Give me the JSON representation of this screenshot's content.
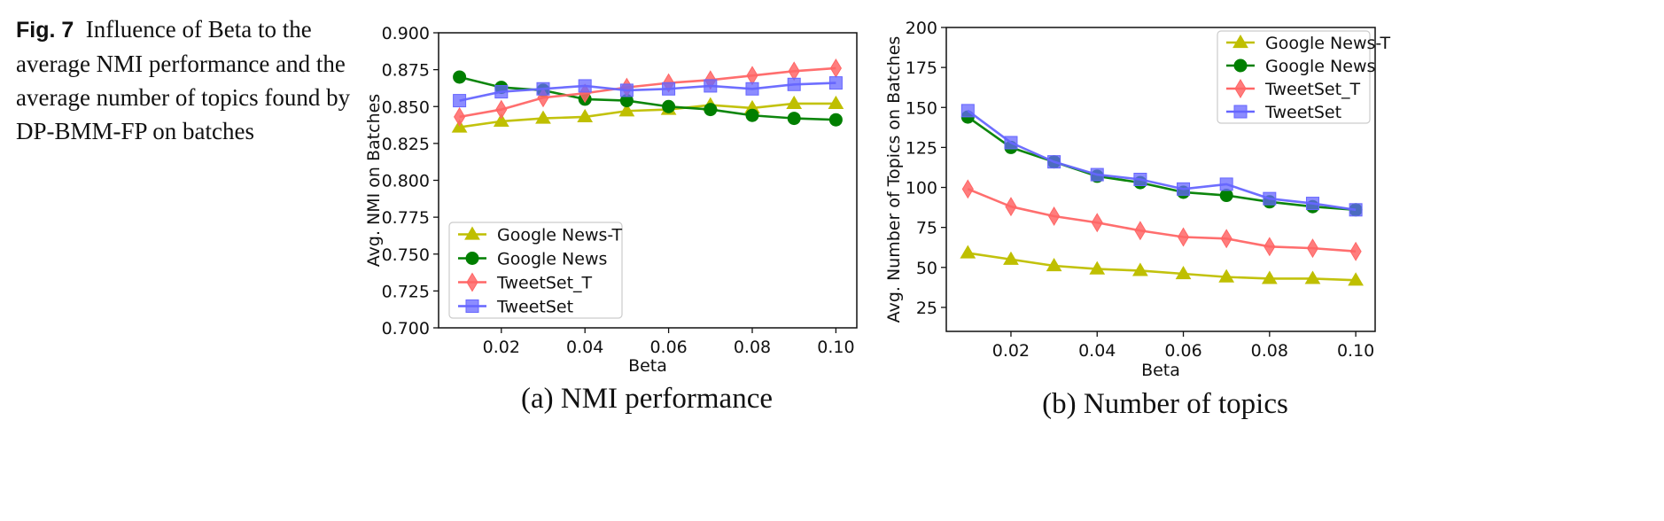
{
  "caption": {
    "label": "Fig. 7",
    "text": "Influence of Beta to the average NMI performance and the average number of topics found by DP-BMM-FP on batches"
  },
  "chart_data": [
    {
      "type": "line",
      "caption": "(a) NMI performance",
      "xlabel": "Beta",
      "ylabel": "Avg. NMI on Batches",
      "xlim": [
        0.005,
        0.105
      ],
      "ylim": [
        0.7,
        0.9
      ],
      "xticks": [
        "0.02",
        "0.04",
        "0.06",
        "0.08",
        "0.10"
      ],
      "xtick_values": [
        0.02,
        0.04,
        0.06,
        0.08,
        0.1
      ],
      "yticks": [
        "0.700",
        "0.725",
        "0.750",
        "0.775",
        "0.800",
        "0.825",
        "0.850",
        "0.875",
        "0.900"
      ],
      "ytick_values": [
        0.7,
        0.725,
        0.75,
        0.775,
        0.8,
        0.825,
        0.85,
        0.875,
        0.9
      ],
      "grid": false,
      "legend_position": "lower-left",
      "x": [
        0.01,
        0.02,
        0.03,
        0.04,
        0.05,
        0.06,
        0.07,
        0.08,
        0.09,
        0.1
      ],
      "series": [
        {
          "name": "Google News-T",
          "color": "#bfbf00",
          "marker": "triangle",
          "values": [
            0.836,
            0.84,
            0.842,
            0.843,
            0.847,
            0.848,
            0.851,
            0.849,
            0.852,
            0.852
          ]
        },
        {
          "name": "Google News",
          "color": "#007f00",
          "marker": "circle",
          "values": [
            0.87,
            0.863,
            0.861,
            0.855,
            0.854,
            0.85,
            0.848,
            0.844,
            0.842,
            0.841
          ]
        },
        {
          "name": "TweetSet_T",
          "color": "#ff6666",
          "marker": "diamond",
          "values": [
            0.843,
            0.848,
            0.856,
            0.859,
            0.863,
            0.866,
            0.868,
            0.871,
            0.874,
            0.876
          ]
        },
        {
          "name": "TweetSet",
          "color": "#6666ff",
          "marker": "square",
          "values": [
            0.854,
            0.86,
            0.862,
            0.864,
            0.861,
            0.862,
            0.864,
            0.862,
            0.865,
            0.866
          ]
        }
      ]
    },
    {
      "type": "line",
      "caption": "(b) Number of topics",
      "xlabel": "Beta",
      "ylabel": "Avg. Number of Topics on Batches",
      "xlim": [
        0.005,
        0.1045
      ],
      "ylim": [
        10,
        200
      ],
      "xticks": [
        "0.02",
        "0.04",
        "0.06",
        "0.08",
        "0.10"
      ],
      "xtick_values": [
        0.02,
        0.04,
        0.06,
        0.08,
        0.1
      ],
      "yticks": [
        "25",
        "50",
        "75",
        "100",
        "125",
        "150",
        "175",
        "200"
      ],
      "ytick_values": [
        25,
        50,
        75,
        100,
        125,
        150,
        175,
        200
      ],
      "grid": false,
      "legend_position": "upper-right",
      "x": [
        0.01,
        0.02,
        0.03,
        0.04,
        0.05,
        0.06,
        0.07,
        0.08,
        0.09,
        0.1
      ],
      "series": [
        {
          "name": "Google News-T",
          "color": "#bfbf00",
          "marker": "triangle",
          "values": [
            59,
            55,
            51,
            49,
            48,
            46,
            44,
            43,
            43,
            42
          ]
        },
        {
          "name": "Google News",
          "color": "#007f00",
          "marker": "circle",
          "values": [
            144,
            125,
            116,
            107,
            103,
            97,
            95,
            91,
            88,
            86
          ]
        },
        {
          "name": "TweetSet_T",
          "color": "#ff6666",
          "marker": "diamond",
          "values": [
            99,
            88,
            82,
            78,
            73,
            69,
            68,
            63,
            62,
            60
          ]
        },
        {
          "name": "TweetSet",
          "color": "#6666ff",
          "marker": "square",
          "values": [
            148,
            128,
            116,
            108,
            105,
            99,
            102,
            93,
            90,
            86
          ]
        }
      ]
    }
  ]
}
